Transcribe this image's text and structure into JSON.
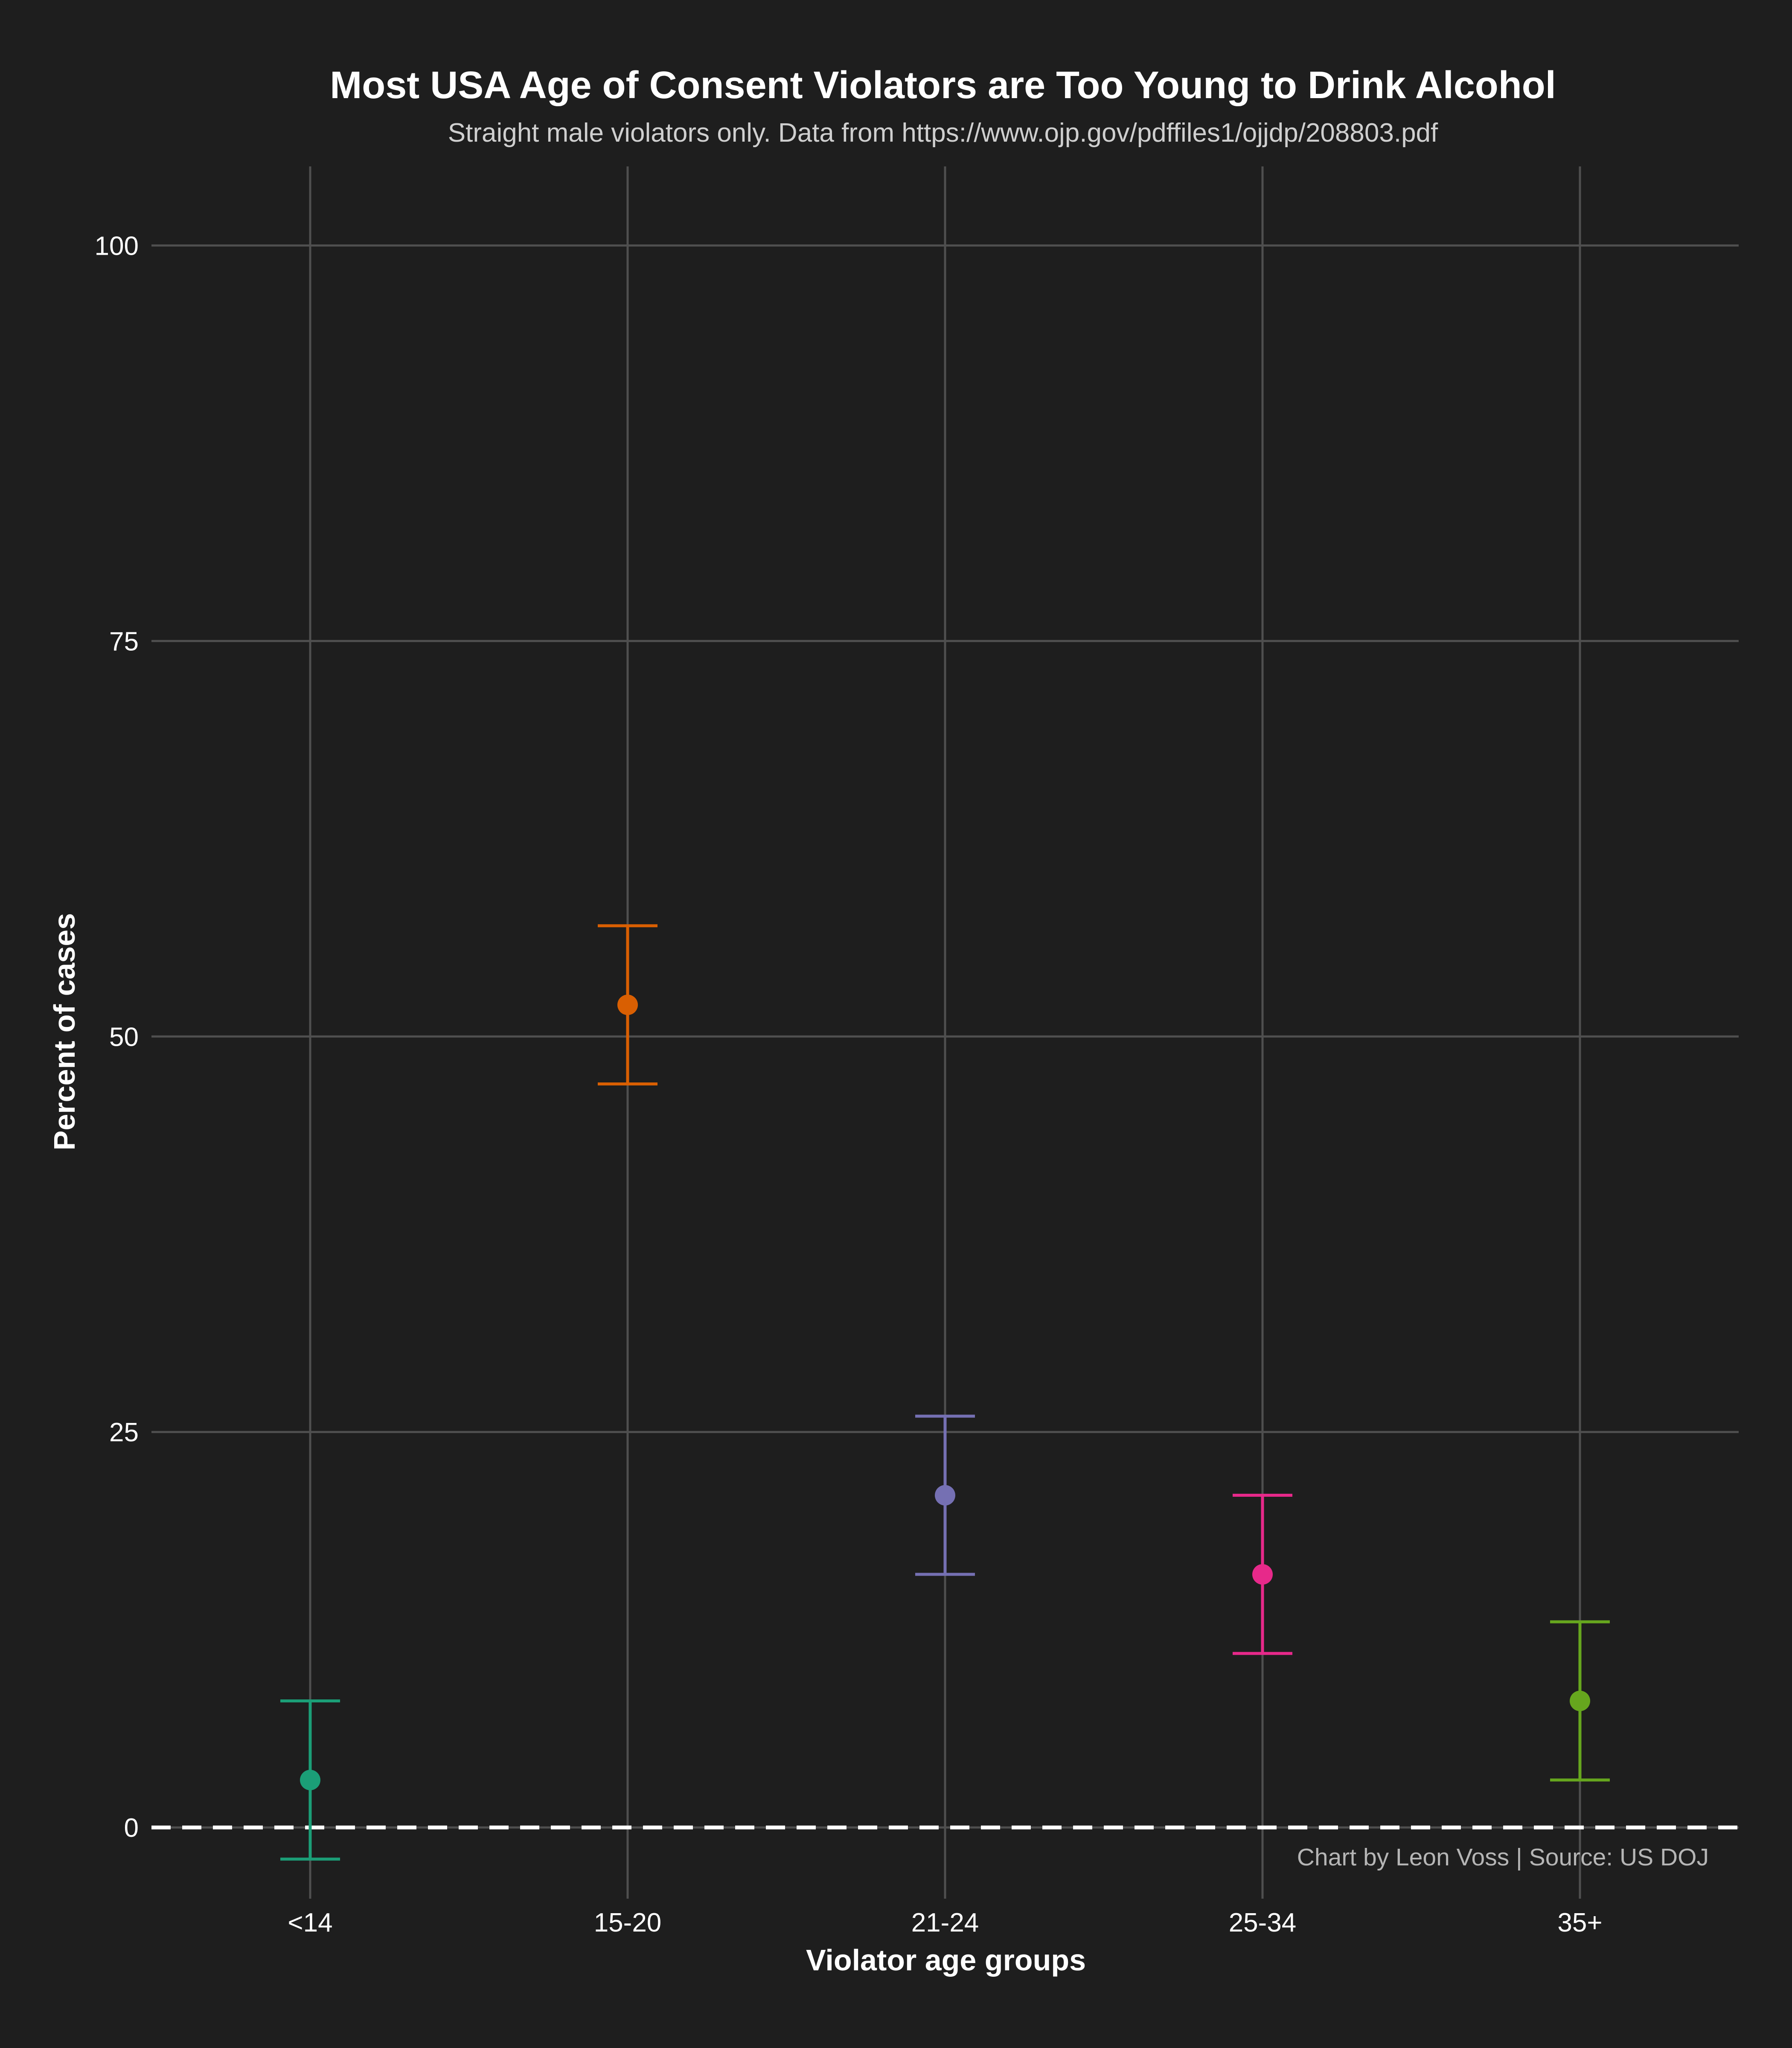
{
  "chart_data": {
    "type": "scatter",
    "title": "Most USA Age of Consent Violators are Too Young to Drink Alcohol",
    "subtitle": "Straight male violators only. Data from https://www.ojp.gov/pdffiles1/ojjdp/208803.pdf",
    "caption": "Chart by Leon Voss | Source: US DOJ",
    "xlabel": "Violator age groups",
    "ylabel": "Percent of cases",
    "categories": [
      "<14",
      "15-20",
      "21-24",
      "25-34",
      "35+"
    ],
    "values": [
      3,
      52,
      21,
      16,
      8
    ],
    "error_low": [
      -2,
      47,
      16,
      11,
      3
    ],
    "error_high": [
      8,
      57,
      26,
      21,
      13
    ],
    "colors": [
      "#1b9e77",
      "#d95f02",
      "#7570b3",
      "#e7298a",
      "#66a61e"
    ],
    "ylim": [
      -4.5,
      105
    ],
    "yticks": [
      0,
      25,
      50,
      75,
      100
    ],
    "ytick_labels": [
      "0",
      "25",
      "50",
      "75",
      "100"
    ],
    "grid": true,
    "reference_line": {
      "y": 0,
      "style": "dashed",
      "color": "#ffffff"
    },
    "background": "#1e1e1e"
  }
}
